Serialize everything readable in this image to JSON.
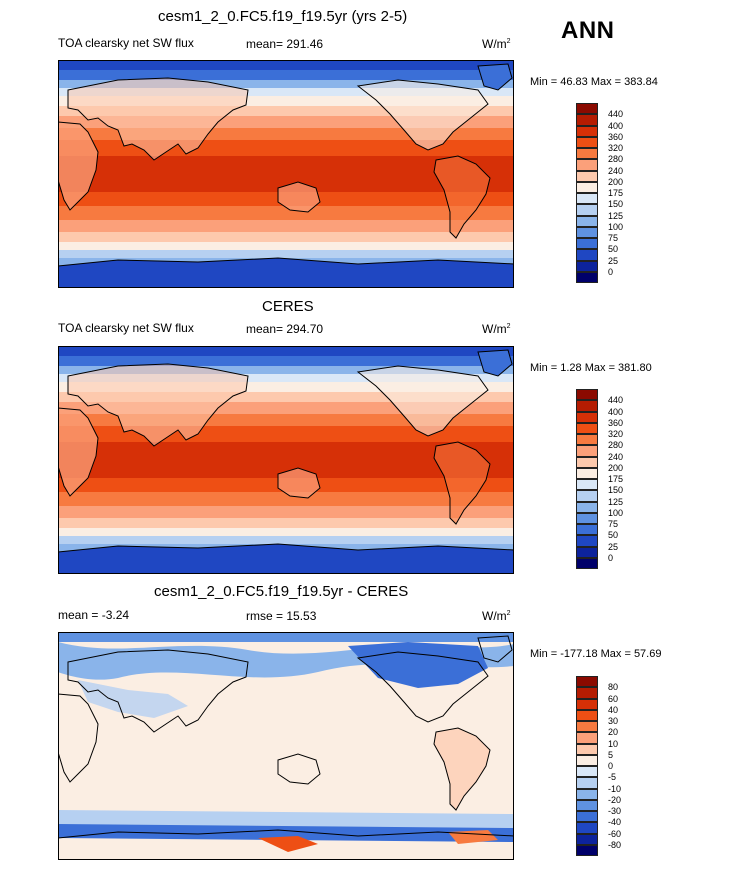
{
  "season": "ANN",
  "units_base": "W/m",
  "units_exp": "2",
  "chart_data": [
    {
      "type": "heatmap",
      "panel": "top",
      "title": "cesm1_2_0.FC5.f19_f19.5yr (yrs 2-5)",
      "subtitle": "TOA clearsky net SW flux",
      "mean_label": "mean= 291.46",
      "minmax_label": "Min =  46.83 Max = 383.84",
      "min": 46.83,
      "max": 383.84,
      "levels": [
        "440",
        "400",
        "360",
        "320",
        "280",
        "240",
        "200",
        "175",
        "150",
        "125",
        "100",
        "75",
        "50",
        "25",
        "0"
      ],
      "colors": [
        "#8b0a00",
        "#b51c02",
        "#d63007",
        "#ee4f14",
        "#f77a40",
        "#fba07a",
        "#fdc9ad",
        "#fbeee3",
        "#d9e7f7",
        "#b6d0f1",
        "#8ab4ea",
        "#5f92e1",
        "#3b6fd7",
        "#1f47c2",
        "#0d239c",
        "#00006a"
      ]
    },
    {
      "type": "heatmap",
      "panel": "middle",
      "title": "CERES",
      "subtitle": "TOA clearsky net SW flux",
      "mean_label": "mean= 294.70",
      "minmax_label": "Min =   1.28 Max = 381.80",
      "min": 1.28,
      "max": 381.8,
      "levels": [
        "440",
        "400",
        "360",
        "320",
        "280",
        "240",
        "200",
        "175",
        "150",
        "125",
        "100",
        "75",
        "50",
        "25",
        "0"
      ],
      "colors": [
        "#8b0a00",
        "#b51c02",
        "#d63007",
        "#ee4f14",
        "#f77a40",
        "#fba07a",
        "#fdc9ad",
        "#fbeee3",
        "#d9e7f7",
        "#b6d0f1",
        "#8ab4ea",
        "#5f92e1",
        "#3b6fd7",
        "#1f47c2",
        "#0d239c",
        "#00006a"
      ]
    },
    {
      "type": "heatmap",
      "panel": "bottom",
      "title": "cesm1_2_0.FC5.f19_f19.5yr - CERES",
      "subtitle": "mean =  -3.24",
      "mean_label": "rmse =  15.53",
      "minmax_label": "Min = -177.18 Max =  57.69",
      "min": -177.18,
      "max": 57.69,
      "levels": [
        "80",
        "60",
        "40",
        "30",
        "20",
        "10",
        "5",
        "0",
        "-5",
        "-10",
        "-20",
        "-30",
        "-40",
        "-60",
        "-80"
      ],
      "colors": [
        "#8b0a00",
        "#b51c02",
        "#d63007",
        "#ee4f14",
        "#f77a40",
        "#fba07a",
        "#fdc9ad",
        "#fbeee3",
        "#d9e7f7",
        "#b6d0f1",
        "#8ab4ea",
        "#5f92e1",
        "#3b6fd7",
        "#1f47c2",
        "#0d239c",
        "#00006a"
      ]
    }
  ]
}
